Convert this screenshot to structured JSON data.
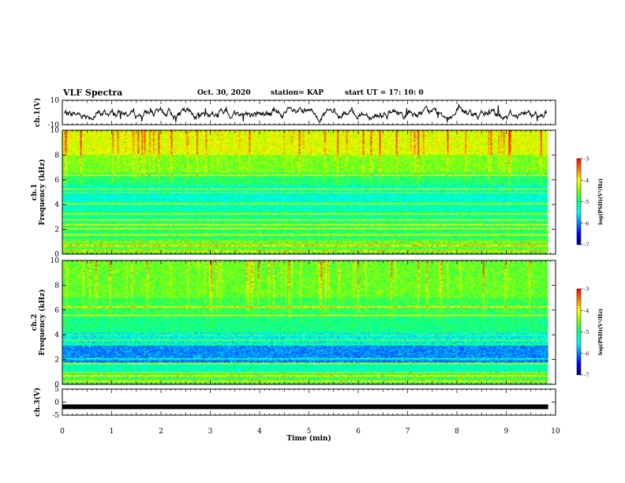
{
  "header": {
    "title": "VLF Spectra",
    "date": "Oct. 30, 2020",
    "station": "station= KAP",
    "start": "start  UT =   17: 10: 0"
  },
  "colors": {
    "colormap": [
      "#000080",
      "#0000ff",
      "#0080ff",
      "#00ffff",
      "#00ff80",
      "#80ff00",
      "#ffff00",
      "#ff8000",
      "#ff0000",
      "#ffffff"
    ]
  },
  "chart_data": [
    {
      "type": "line",
      "ylabel": "ch.1(V)",
      "ylim": [
        -10,
        10
      ],
      "yticks": [
        "10",
        "-10"
      ],
      "xlim": [
        0,
        10
      ],
      "series": [
        {
          "values_note_omitted": true
        }
      ]
    },
    {
      "type": "heatmap",
      "ylabel": [
        "ch.1",
        "Frequency  (kHz)"
      ],
      "ylim": [
        0,
        10
      ],
      "yticks": [
        "0",
        "2",
        "4",
        "6",
        "8",
        "10"
      ],
      "xlim": [
        0,
        9.85
      ],
      "colorbar": {
        "label": "log(PSD)(V²/Hz)",
        "range": [
          -7,
          -3
        ],
        "ticks": [
          "-3",
          "-4",
          "-5",
          "-6",
          "-7"
        ]
      },
      "bands_khz": [
        0.3,
        0.7,
        1.0,
        1.6,
        2.1,
        2.4,
        2.8,
        3.3,
        4.1,
        5.0,
        5.3,
        6.4
      ]
    },
    {
      "type": "heatmap",
      "ylabel": [
        "ch.2",
        "Frequency  (kHz)"
      ],
      "ylim": [
        0,
        10
      ],
      "yticks": [
        "0",
        "2",
        "4",
        "6",
        "8",
        "10"
      ],
      "xlim": [
        0,
        9.85
      ],
      "colorbar": {
        "label": "log(PSD)(V²/Hz)",
        "range": [
          -7,
          -3
        ],
        "ticks": [
          "-3",
          "-4",
          "-5",
          "-6",
          "-7"
        ]
      },
      "bands_khz": [
        0.3,
        0.7,
        1.0,
        1.7,
        2.1,
        3.2,
        3.6,
        4.0,
        5.6,
        6.3
      ]
    },
    {
      "type": "line",
      "ylabel": "ch.3(V)",
      "ylim": [
        -5,
        5
      ],
      "yticks": [
        "5",
        "0",
        "-5"
      ],
      "xlabel": "Time  (min)",
      "xlim": [
        0,
        10
      ],
      "xticks": [
        "0",
        "1",
        "2",
        "3",
        "4",
        "5",
        "6",
        "7",
        "8",
        "9",
        "10"
      ],
      "series": [
        {
          "constant_value": -1.8
        }
      ]
    }
  ]
}
